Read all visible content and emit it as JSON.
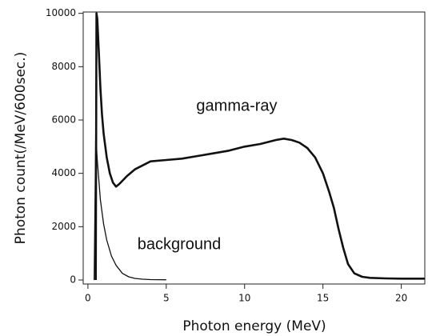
{
  "chart_data": {
    "type": "line",
    "x_label": "Photon energy (MeV)",
    "y_label": "Photon count(/MeV/600sec.)",
    "xlim": [
      -0.3,
      21.5
    ],
    "ylim": [
      -150,
      10050
    ],
    "xticks": [
      0,
      5,
      10,
      15,
      20
    ],
    "yticks": [
      0,
      2000,
      4000,
      6000,
      8000,
      10000
    ],
    "series": [
      {
        "name": "gamma-ray",
        "color": "#111111",
        "x": [
          0.5,
          0.55,
          0.6,
          0.7,
          0.8,
          0.9,
          1.0,
          1.2,
          1.4,
          1.6,
          1.8,
          2.0,
          2.5,
          3.0,
          3.5,
          4.0,
          5.0,
          6.0,
          7.0,
          8.0,
          9.0,
          10.0,
          11.0,
          12.0,
          12.5,
          13.0,
          13.5,
          14.0,
          14.5,
          15.0,
          15.4,
          15.7,
          16.0,
          16.3,
          16.6,
          17.0,
          17.5,
          18.0,
          19.0,
          20.0,
          21.5
        ],
        "values": [
          0,
          10000,
          9800,
          8500,
          7200,
          6200,
          5500,
          4600,
          4000,
          3650,
          3500,
          3600,
          3900,
          4150,
          4300,
          4450,
          4500,
          4550,
          4650,
          4750,
          4850,
          5000,
          5100,
          5250,
          5300,
          5250,
          5150,
          4950,
          4600,
          4000,
          3300,
          2700,
          1900,
          1200,
          600,
          250,
          120,
          80,
          60,
          50,
          50
        ]
      },
      {
        "name": "background",
        "color": "#111111",
        "x": [
          0.4,
          0.5,
          0.6,
          0.8,
          1.0,
          1.2,
          1.5,
          1.8,
          2.2,
          2.6,
          3.0,
          3.5,
          4.0,
          5.0
        ],
        "values": [
          0,
          5500,
          4500,
          3000,
          2100,
          1500,
          900,
          550,
          250,
          120,
          60,
          30,
          15,
          10
        ]
      }
    ]
  }
}
